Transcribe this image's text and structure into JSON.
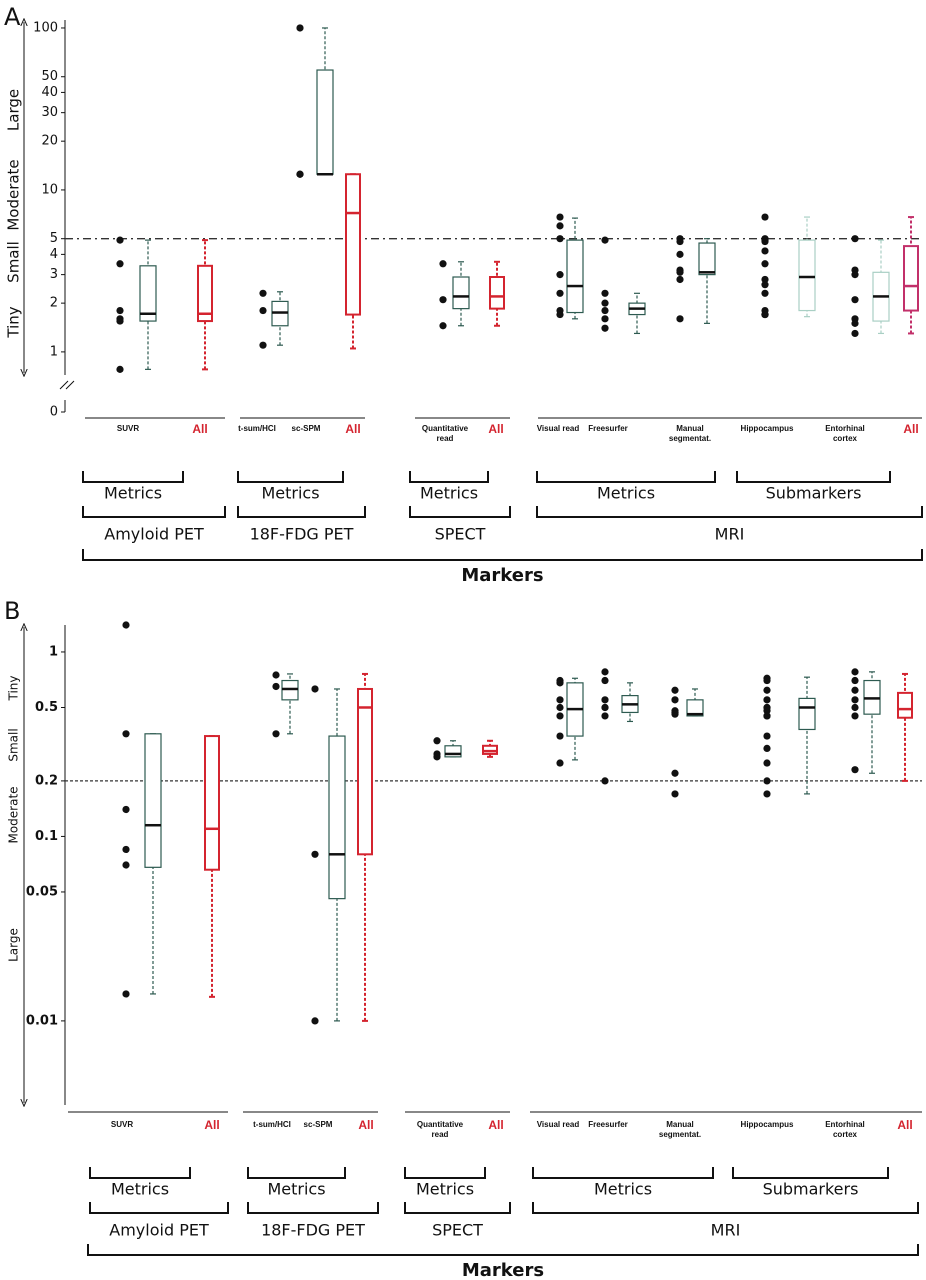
{
  "chart_data": [
    {
      "type": "box",
      "panel": "A",
      "log_scale": true,
      "ylim": [
        0.72,
        112
      ],
      "yticks": [
        0,
        1,
        2,
        3,
        4,
        5,
        10,
        20,
        30,
        40,
        50,
        100
      ],
      "reference_line": 5,
      "effect_labels": [
        "Large",
        "Moderate",
        "Small",
        "Tiny"
      ],
      "point_color": "#111111",
      "items": [
        {
          "label": "SUVR",
          "color": "#2d5a50",
          "points": [
            4.9,
            3.5,
            1.8,
            1.6,
            1.55,
            0.78
          ],
          "box": [
            0.78,
            1.55,
            1.72,
            3.4,
            4.9
          ]
        },
        {
          "label": "All",
          "color": "#d4242f",
          "label_color": "#d4242f",
          "box": [
            0.78,
            1.55,
            1.72,
            3.4,
            4.9
          ]
        },
        {
          "label": "t-sum/HCI",
          "color": "#2d5a50",
          "points": [
            2.3,
            1.8,
            1.1
          ],
          "box": [
            1.1,
            1.45,
            1.75,
            2.05,
            2.35
          ]
        },
        {
          "label": "sc-SPM",
          "color": "#2d5a50",
          "points": [
            100,
            12.5,
            12.5
          ],
          "box": [
            12.5,
            12.5,
            12.5,
            55,
            100
          ]
        },
        {
          "label": "All",
          "color": "#d4242f",
          "label_color": "#d4242f",
          "box": [
            1.05,
            1.7,
            7.2,
            12.5,
            12.5
          ]
        },
        {
          "label": "Quantitative read",
          "color": "#2d5a50",
          "points": [
            3.5,
            2.1,
            1.45
          ],
          "box": [
            1.45,
            1.85,
            2.2,
            2.9,
            3.6
          ]
        },
        {
          "label": "All",
          "color": "#d4242f",
          "label_color": "#d4242f",
          "box": [
            1.45,
            1.85,
            2.2,
            2.9,
            3.6
          ]
        },
        {
          "label": "Visual read",
          "color": "#2d5a50",
          "points": [
            6.8,
            6.0,
            5.0,
            3.0,
            2.3,
            1.8,
            1.7
          ],
          "box": [
            1.6,
            1.75,
            2.55,
            4.9,
            6.7
          ]
        },
        {
          "label": "Freesurfer",
          "color": "#2d5a50",
          "points": [
            4.9,
            2.3,
            2.0,
            1.8,
            1.6,
            1.4
          ],
          "box": [
            1.3,
            1.7,
            1.85,
            2.0,
            2.3
          ]
        },
        {
          "label": "Manual segmentat.",
          "color": "#2d5a50",
          "points": [
            5.0,
            4.8,
            4.0,
            3.2,
            3.1,
            2.8,
            1.6
          ],
          "box": [
            1.5,
            3.0,
            3.1,
            4.7,
            5.0
          ]
        },
        {
          "label": "Hippocampus",
          "color": "#a9cfc4",
          "points": [
            6.8,
            5.0,
            4.9,
            4.8,
            4.2,
            3.5,
            2.8,
            2.6,
            2.3,
            1.8,
            1.7,
            1.7,
            1.7
          ],
          "box": [
            1.65,
            1.8,
            2.9,
            4.9,
            6.8
          ]
        },
        {
          "label": "Entorhinal cortex",
          "color": "#a9cfc4",
          "points": [
            5.0,
            3.2,
            3.0,
            2.1,
            1.6,
            1.5,
            1.3
          ],
          "box": [
            1.3,
            1.55,
            2.2,
            3.1,
            4.9
          ]
        },
        {
          "label": "All",
          "color": "#c2306a",
          "label_color": "#d4242f",
          "box": [
            1.3,
            1.8,
            2.55,
            4.5,
            6.8
          ]
        }
      ],
      "level1": [
        "Metrics",
        "Metrics",
        "Metrics",
        "Metrics",
        "Submarkers"
      ],
      "level2": [
        "Amyloid PET",
        "18F-FDG PET",
        "SPECT",
        "MRI"
      ],
      "xlabel": "Markers"
    },
    {
      "type": "box",
      "panel": "B",
      "log_scale": true,
      "ylim": [
        0.0035,
        1.4
      ],
      "yticks": [
        0.01,
        0.05,
        0.1,
        0.2,
        0.5,
        1
      ],
      "reference_line": 0.2,
      "effect_labels": [
        "Tiny",
        "Small",
        "Moderate",
        "Large"
      ],
      "point_color": "#111111",
      "items": [
        {
          "label": "SUVR",
          "color": "#2d5a50",
          "points": [
            1.4,
            0.36,
            0.14,
            0.085,
            0.07,
            0.014
          ],
          "box": [
            0.014,
            0.068,
            0.115,
            0.36,
            0.36
          ]
        },
        {
          "label": "All",
          "color": "#d4242f",
          "label_color": "#d4242f",
          "box": [
            0.0135,
            0.066,
            0.11,
            0.35,
            0.35
          ]
        },
        {
          "label": "t-sum/HCI",
          "color": "#2d5a50",
          "points": [
            0.75,
            0.65,
            0.36
          ],
          "box": [
            0.36,
            0.55,
            0.63,
            0.7,
            0.76
          ]
        },
        {
          "label": "sc-SPM",
          "color": "#2d5a50",
          "points": [
            0.63,
            0.08,
            0.01
          ],
          "box": [
            0.01,
            0.046,
            0.08,
            0.35,
            0.63
          ]
        },
        {
          "label": "All",
          "color": "#d4242f",
          "label_color": "#d4242f",
          "box": [
            0.01,
            0.08,
            0.5,
            0.63,
            0.76
          ]
        },
        {
          "label": "Quantitative read",
          "color": "#2d5a50",
          "points": [
            0.33,
            0.28,
            0.27
          ],
          "box": [
            0.27,
            0.27,
            0.28,
            0.31,
            0.33
          ]
        },
        {
          "label": "All",
          "color": "#d4242f",
          "label_color": "#d4242f",
          "box": [
            0.27,
            0.28,
            0.29,
            0.31,
            0.33
          ]
        },
        {
          "label": "Visual read",
          "color": "#2d5a50",
          "points": [
            0.7,
            0.68,
            0.55,
            0.5,
            0.45,
            0.35,
            0.25
          ],
          "box": [
            0.26,
            0.35,
            0.49,
            0.68,
            0.72
          ]
        },
        {
          "label": "Freesurfer",
          "color": "#2d5a50",
          "points": [
            0.78,
            0.7,
            0.55,
            0.5,
            0.5,
            0.45,
            0.2
          ],
          "box": [
            0.42,
            0.47,
            0.52,
            0.58,
            0.68
          ]
        },
        {
          "label": "Manual segmentat.",
          "color": "#2d5a50",
          "points": [
            0.62,
            0.55,
            0.48,
            0.47,
            0.47,
            0.46,
            0.22,
            0.17
          ],
          "box": [
            0.45,
            0.45,
            0.46,
            0.55,
            0.63
          ]
        },
        {
          "label": "Hippocampus",
          "color": "#2d5a50",
          "points": [
            0.72,
            0.7,
            0.62,
            0.55,
            0.5,
            0.5,
            0.48,
            0.45,
            0.45,
            0.35,
            0.3,
            0.25,
            0.2,
            0.17
          ],
          "box": [
            0.17,
            0.38,
            0.5,
            0.56,
            0.73
          ]
        },
        {
          "label": "Entorhinal cortex",
          "color": "#2d5a50",
          "points": [
            0.78,
            0.7,
            0.62,
            0.55,
            0.5,
            0.45,
            0.23
          ],
          "box": [
            0.22,
            0.46,
            0.56,
            0.7,
            0.78
          ]
        },
        {
          "label": "All",
          "color": "#d4242f",
          "label_color": "#d4242f",
          "box": [
            0.2,
            0.44,
            0.49,
            0.6,
            0.76
          ]
        }
      ],
      "level1": [
        "Metrics",
        "Metrics",
        "Metrics",
        "Metrics",
        "Submarkers"
      ],
      "level2": [
        "Amyloid PET",
        "18F-FDG PET",
        "SPECT",
        "MRI"
      ],
      "xlabel": "Markers"
    }
  ]
}
